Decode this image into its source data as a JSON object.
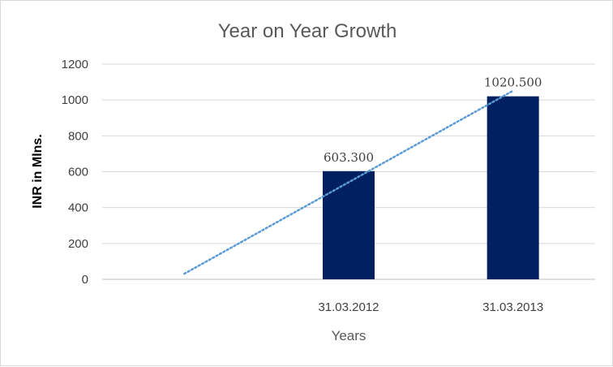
{
  "chart_data": {
    "type": "bar",
    "title": "Year on Year Growth",
    "xlabel": "Years",
    "ylabel": "INR in Mlns.",
    "categories": [
      "",
      "31.03.2012",
      "31.03.2013"
    ],
    "values": [
      null,
      603.3,
      1020.5
    ],
    "data_labels": [
      "",
      "603.300",
      "1020.500"
    ],
    "yticks": [
      "0",
      "200",
      "400",
      "600",
      "800",
      "1000",
      "1200"
    ],
    "ylim": [
      0,
      1200
    ],
    "grid": true,
    "legend": "none",
    "bar_color": "#002060",
    "trendline": {
      "type": "linear",
      "style": "dotted",
      "color": "#5b9bd5"
    }
  }
}
